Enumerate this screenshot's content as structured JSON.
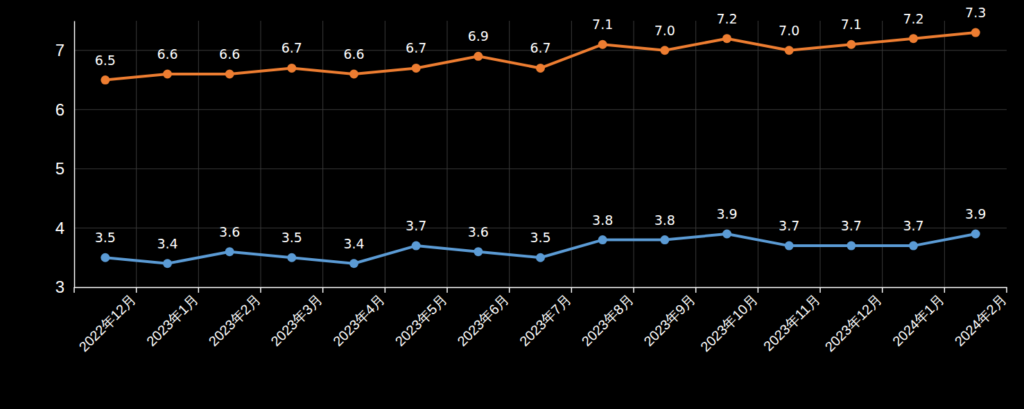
{
  "chart_data": {
    "type": "line",
    "categories": [
      "2022年12月",
      "2023年1月",
      "2023年2月",
      "2023年3月",
      "2023年4月",
      "2023年5月",
      "2023年6月",
      "2023年7月",
      "2023年8月",
      "2023年9月",
      "2023年10月",
      "2023年11月",
      "2023年12月",
      "2024年1月",
      "2024年2月"
    ],
    "series": [
      {
        "color": "#ed7d31",
        "marker": "circle",
        "values": [
          6.5,
          6.6,
          6.6,
          6.7,
          6.6,
          6.7,
          6.9,
          6.7,
          7.1,
          7.0,
          7.2,
          7.0,
          7.1,
          7.2,
          7.3
        ],
        "value_labels": [
          "6.5",
          "6.6",
          "6.6",
          "6.7",
          "6.6",
          "6.7",
          "6.9",
          "6.7",
          "7.1",
          "7.0",
          "7.2",
          "7.0",
          "7.1",
          "7.2",
          "7.3"
        ]
      },
      {
        "color": "#5b9bd5",
        "marker": "circle",
        "values": [
          3.5,
          3.4,
          3.6,
          3.5,
          3.4,
          3.7,
          3.6,
          3.5,
          3.8,
          3.8,
          3.9,
          3.7,
          3.7,
          3.7,
          3.9
        ]
      }
    ],
    "ylim": [
      3,
      7.5
    ],
    "yticks": [
      3,
      4,
      5,
      6,
      7
    ],
    "grid": true,
    "data_labels": true
  }
}
